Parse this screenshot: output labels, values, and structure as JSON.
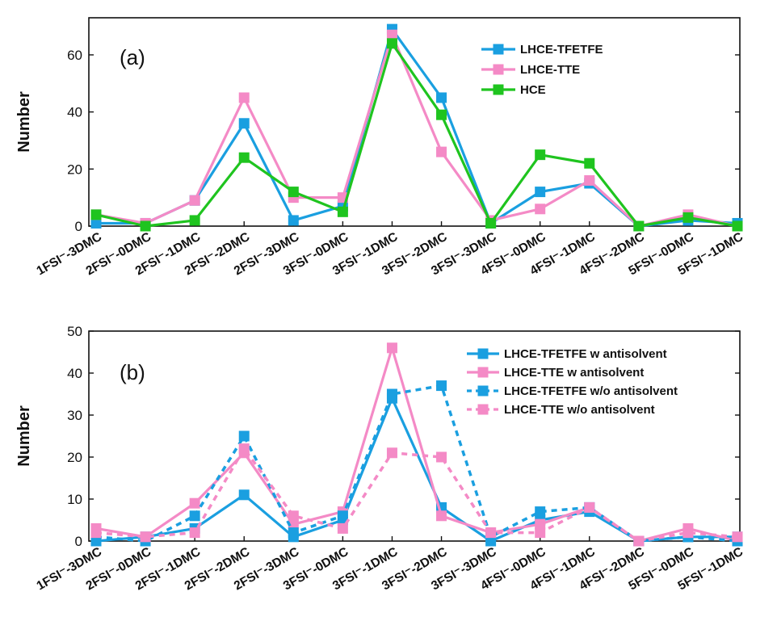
{
  "chart_data": [
    {
      "type": "line",
      "panel_label": "(a)",
      "title": "",
      "ylabel": "Number",
      "xlabel": "",
      "ylim": [
        0,
        73
      ],
      "yticks": [
        0,
        20,
        40,
        60
      ],
      "grid": false,
      "legend_position": "top-right",
      "categories": [
        "1FSI⁻-3DMC",
        "2FSI⁻-0DMC",
        "2FSI⁻-1DMC",
        "2FSI⁻-2DMC",
        "2FSI⁻-3DMC",
        "3FSI⁻-0DMC",
        "3FSI⁻-1DMC",
        "3FSI⁻-2DMC",
        "3FSI⁻-3DMC",
        "4FSI⁻-0DMC",
        "4FSI⁻-1DMC",
        "4FSI⁻-2DMC",
        "5FSI⁻-0DMC",
        "5FSI⁻-1DMC"
      ],
      "series": [
        {
          "name": "LHCE-TFETFE",
          "color": "#1a9fe0",
          "style": "solid",
          "values": [
            1,
            1,
            9,
            36,
            2,
            7,
            69,
            45,
            1,
            12,
            15,
            0,
            2,
            1
          ]
        },
        {
          "name": "LHCE-TTE",
          "color": "#f48ac6",
          "style": "solid",
          "values": [
            4,
            1,
            9,
            45,
            10,
            10,
            67,
            26,
            2,
            6,
            16,
            0,
            4,
            0
          ]
        },
        {
          "name": "HCE",
          "color": "#1fc41f",
          "style": "solid",
          "values": [
            4,
            0,
            2,
            24,
            12,
            5,
            64,
            39,
            1,
            25,
            22,
            0,
            3,
            0
          ]
        }
      ]
    },
    {
      "type": "line",
      "panel_label": "(b)",
      "title": "",
      "ylabel": "Number",
      "xlabel": "",
      "ylim": [
        0,
        50
      ],
      "yticks": [
        0,
        10,
        20,
        30,
        40,
        50
      ],
      "grid": false,
      "legend_position": "top-right",
      "categories": [
        "1FSI⁻-3DMC",
        "2FSI⁻-0DMC",
        "2FSI⁻-1DMC",
        "2FSI⁻-2DMC",
        "2FSI⁻-3DMC",
        "3FSI⁻-0DMC",
        "3FSI⁻-1DMC",
        "3FSI⁻-2DMC",
        "3FSI⁻-3DMC",
        "4FSI⁻-0DMC",
        "4FSI⁻-1DMC",
        "4FSI⁻-2DMC",
        "5FSI⁻-0DMC",
        "5FSI⁻-1DMC"
      ],
      "series": [
        {
          "name": "LHCE-TFETFE w  antisolvent",
          "color": "#1a9fe0",
          "style": "solid",
          "values": [
            0,
            1,
            3,
            11,
            1,
            5,
            34,
            8,
            0,
            5,
            7,
            0,
            1,
            1
          ]
        },
        {
          "name": "LHCE-TTE w  antisolvent",
          "color": "#f48ac6",
          "style": "solid",
          "values": [
            3,
            1,
            9,
            21,
            4,
            7,
            46,
            6,
            2,
            4,
            8,
            0,
            3,
            0
          ]
        },
        {
          "name": "LHCE-TFETFE w/o  antisolvent",
          "color": "#1a9fe0",
          "style": "dashed",
          "values": [
            1,
            0,
            6,
            25,
            2,
            6,
            35,
            37,
            1,
            7,
            8,
            0,
            1,
            0
          ]
        },
        {
          "name": "LHCE-TTE w/o  antisolvent",
          "color": "#f48ac6",
          "style": "dashed",
          "values": [
            2,
            1,
            2,
            22,
            6,
            3,
            21,
            20,
            2,
            2,
            8,
            0,
            2,
            1
          ]
        }
      ]
    }
  ]
}
